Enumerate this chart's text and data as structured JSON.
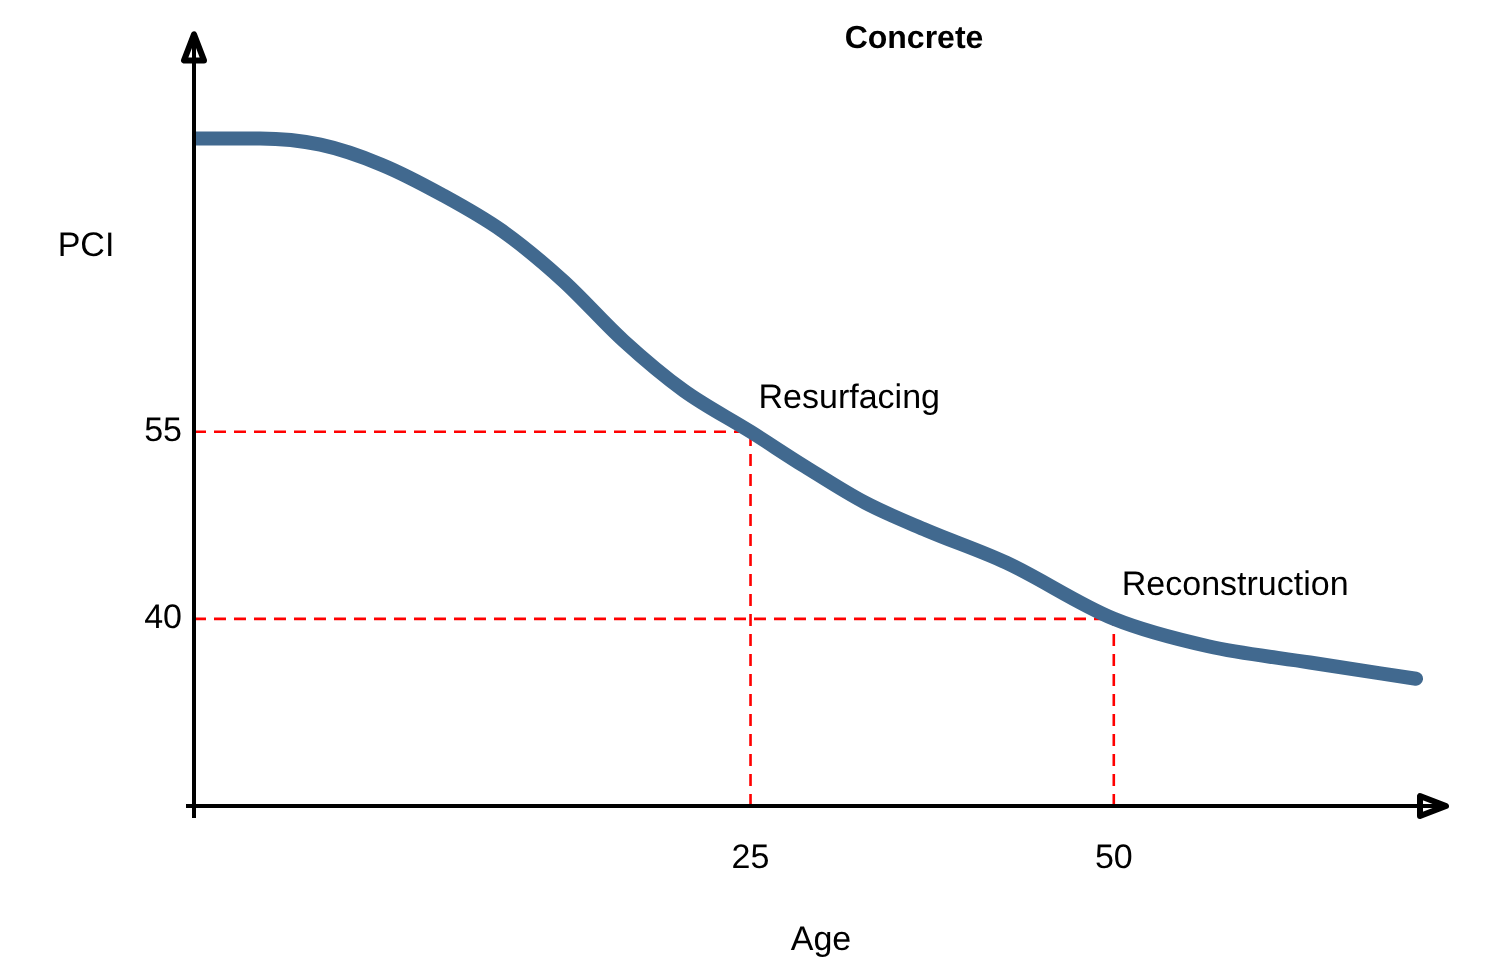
{
  "chart_data": {
    "type": "line",
    "title": "Concrete",
    "xlabel": "Age",
    "ylabel": "PCI",
    "x": [
      -13.3,
      -8.75,
      -4.6,
      -0.4,
      3.75,
      7.9,
      12.1,
      16.25,
      20.4,
      25,
      28.75,
      32.9,
      37.1,
      42.6,
      50,
      56.5,
      63.5,
      70.8
    ],
    "series": [
      {
        "color": "#41698f",
        "values": [
          78.5,
          78.5,
          78,
          76.4,
          74,
          71.1,
          67.1,
          62.3,
          58.3,
          55,
          52.2,
          49.3,
          47.1,
          44.5,
          40,
          37.8,
          36.5,
          35.2
        ]
      }
    ],
    "xlim": [
      -13.3,
      73
    ],
    "ylim": [
      25,
      87
    ],
    "xticks": [
      25,
      50
    ],
    "yticks": [
      55,
      40
    ],
    "ref_lines": [
      {
        "axis": "y",
        "value": 55,
        "color": "#ff0000",
        "line_style": "dashed"
      },
      {
        "axis": "x",
        "value": 25,
        "color": "#ff0000",
        "line_style": "dashed"
      },
      {
        "axis": "y",
        "value": 40,
        "color": "#ff0000",
        "line_style": "dashed"
      },
      {
        "axis": "x",
        "value": 50,
        "color": "#ff0000",
        "line_style": "dashed"
      }
    ],
    "annotations": [
      {
        "text": "Resurfacing",
        "x": 25,
        "y": 55
      },
      {
        "text": "Reconstruction",
        "x": 50,
        "y": 40
      }
    ],
    "grid": false,
    "legend": false,
    "marker": "none",
    "line_style": "solid"
  }
}
